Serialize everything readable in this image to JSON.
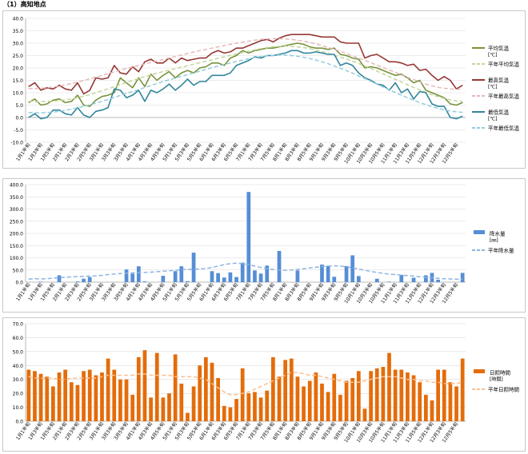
{
  "page": {
    "title": "（1）高知地点"
  },
  "chart_data": [
    {
      "type": "line",
      "categories": [
        "1月1半旬",
        "1月2半旬",
        "1月3半旬",
        "1月4半旬",
        "1月5半旬",
        "1月6半旬",
        "2月1半旬",
        "2月2半旬",
        "2月3半旬",
        "2月4半旬",
        "2月5半旬",
        "2月6半旬",
        "3月1半旬",
        "3月2半旬",
        "3月3半旬",
        "3月4半旬",
        "3月5半旬",
        "3月6半旬",
        "4月1半旬",
        "4月2半旬",
        "4月3半旬",
        "4月4半旬",
        "4月5半旬",
        "4月6半旬",
        "5月1半旬",
        "5月2半旬",
        "5月3半旬",
        "5月4半旬",
        "5月5半旬",
        "5月6半旬",
        "6月1半旬",
        "6月2半旬",
        "6月3半旬",
        "6月4半旬",
        "6月5半旬",
        "6月6半旬",
        "7月1半旬",
        "7月2半旬",
        "7月3半旬",
        "7月4半旬",
        "7月5半旬",
        "7月6半旬",
        "8月1半旬",
        "8月2半旬",
        "8月3半旬",
        "8月4半旬",
        "8月5半旬",
        "8月6半旬",
        "9月1半旬",
        "9月2半旬",
        "9月3半旬",
        "9月4半旬",
        "9月5半旬",
        "9月6半旬",
        "10月1半旬",
        "10月2半旬",
        "10月3半旬",
        "10月4半旬",
        "10月5半旬",
        "10月6半旬",
        "11月1半旬",
        "11月2半旬",
        "11月3半旬",
        "11月4半旬",
        "11月5半旬",
        "11月6半旬",
        "12月1半旬",
        "12月2半旬",
        "12月3半旬",
        "12月4半旬",
        "12月5半旬",
        "12月6半旬"
      ],
      "xlabels": [
        "1月1半旬",
        "1月3半旬",
        "1月5半旬",
        "2月1半旬",
        "2月3半旬",
        "2月5半旬",
        "3月1半旬",
        "3月3半旬",
        "3月5半旬",
        "4月1半旬",
        "4月3半旬",
        "4月5半旬",
        "5月1半旬",
        "5月3半旬",
        "5月5半旬",
        "6月1半旬",
        "6月3半旬",
        "6月5半旬",
        "7月1半旬",
        "7月3半旬",
        "7月5半旬",
        "8月1半旬",
        "8月3半旬",
        "8月5半旬",
        "9月1半旬",
        "9月3半旬",
        "9月5半旬",
        "10月1半旬",
        "10月3半旬",
        "10月5半旬",
        "11月1半旬",
        "11月3半旬",
        "11月5半旬",
        "12月1半旬",
        "12月3半旬",
        "12月5半旬"
      ],
      "ylim": [
        -10,
        40
      ],
      "yticks": [
        "-10.0",
        "-5.0",
        "0.0",
        "5.0",
        "10.0",
        "15.0",
        "20.0",
        "25.0",
        "30.0",
        "35.0",
        "40.0"
      ],
      "grid": true,
      "legend_position": "right",
      "series": [
        {
          "name": "平均気温",
          "unit": "[℃]",
          "color": "#77933c",
          "style": "solid",
          "values": [
            6,
            7.5,
            5,
            5.5,
            7,
            7.5,
            6,
            6.5,
            9,
            5,
            4.5,
            7,
            8.5,
            9,
            10,
            16,
            14,
            12,
            16,
            12.5,
            17.5,
            15,
            17,
            18.5,
            16,
            18,
            19,
            18,
            20,
            20.5,
            22,
            22,
            21,
            24,
            25,
            27,
            26,
            27,
            27.5,
            28,
            28,
            28.5,
            29,
            29.5,
            30,
            29.5,
            28.5,
            28,
            28,
            27.5,
            28,
            25.5,
            25,
            24,
            23.5,
            20,
            20.5,
            20,
            19,
            18,
            17,
            17.5,
            16,
            14,
            15,
            11,
            10,
            9,
            8,
            5.5,
            5,
            6
          ]
        },
        {
          "name": "平年平均気温",
          "color": "#c3d69b",
          "style": "dashed",
          "values": [
            6.5,
            6.4,
            6.4,
            6.5,
            6.6,
            6.8,
            7.1,
            7.5,
            8,
            8.6,
            9.2,
            10,
            10.8,
            11.6,
            12.4,
            13.3,
            14.1,
            14.9,
            15.7,
            16.5,
            17.2,
            17.9,
            18.5,
            19.1,
            19.7,
            20.3,
            20.9,
            21.5,
            22.1,
            22.7,
            23.3,
            23.9,
            24.5,
            25.1,
            25.6,
            26.2,
            26.8,
            27.3,
            27.8,
            28.2,
            28.5,
            28.7,
            28.8,
            28.7,
            28.5,
            28.2,
            27.8,
            27.2,
            26.6,
            25.9,
            25.2,
            24.4,
            23.6,
            22.7,
            21.8,
            20.8,
            19.8,
            18.7,
            17.6,
            16.5,
            15.4,
            14.3,
            13.2,
            12.1,
            11.1,
            10.1,
            9.2,
            8.4,
            7.7,
            7.1,
            6.7,
            6.5
          ]
        },
        {
          "name": "最高気温",
          "unit": "[℃]",
          "color": "#953735",
          "style": "solid",
          "values": [
            12.5,
            14,
            11,
            12,
            11.5,
            13,
            11.5,
            11,
            14,
            9.5,
            11,
            16,
            15.5,
            16,
            21,
            18,
            17.5,
            20.5,
            18.5,
            22.5,
            23.5,
            22,
            22,
            24,
            22,
            24,
            23,
            23.5,
            24,
            24,
            26,
            27,
            26,
            26.5,
            28,
            28,
            29,
            30,
            31,
            31.5,
            30.5,
            32,
            33,
            33.5,
            33.5,
            33.5,
            33.5,
            33,
            32.5,
            32.5,
            32.5,
            30.5,
            30,
            30,
            30,
            24,
            25,
            25.5,
            24,
            22.5,
            22.5,
            22,
            21,
            21.5,
            19,
            19.5,
            17,
            15,
            16.5,
            15,
            11.5,
            13
          ]
        },
        {
          "name": "平年最高気温",
          "color": "#e6b9b8",
          "style": "dashed",
          "values": [
            11.7,
            11.7,
            11.8,
            12,
            12.3,
            12.7,
            13.2,
            13.7,
            14.3,
            14.9,
            15.6,
            16.3,
            17,
            17.7,
            18.4,
            19.1,
            19.8,
            20.4,
            21,
            21.6,
            22.2,
            22.8,
            23.4,
            24,
            24.6,
            25.2,
            25.8,
            26.4,
            27,
            27.5,
            28,
            28.5,
            29,
            29.5,
            30,
            30.4,
            30.8,
            31.2,
            31.5,
            31.7,
            31.8,
            31.8,
            31.7,
            31.5,
            31.2,
            30.8,
            30.3,
            29.7,
            29,
            28.3,
            27.5,
            26.7,
            25.8,
            24.9,
            24,
            23.1,
            22.1,
            21.1,
            20.1,
            19.2,
            18.2,
            17.2,
            16.2,
            15.3,
            14.4,
            13.5,
            12.8,
            12.2,
            11.8,
            11.5,
            11.4,
            11.4
          ]
        },
        {
          "name": "最低気温",
          "unit": "[℃]",
          "color": "#31859c",
          "style": "solid",
          "values": [
            0,
            1.5,
            -0.5,
            0,
            3,
            3,
            1.5,
            1,
            4,
            1,
            0,
            2.5,
            3,
            4,
            11.5,
            11,
            8,
            9,
            11,
            6.5,
            11,
            10,
            11.5,
            13.5,
            11,
            13,
            15.5,
            13,
            14.5,
            14.5,
            17,
            17,
            17,
            18,
            21,
            22,
            23,
            24.5,
            24,
            25,
            25,
            25.5,
            26,
            27,
            27,
            26,
            26,
            26.5,
            26,
            25.5,
            25.5,
            21,
            22,
            21,
            18,
            16,
            15,
            13.5,
            13,
            11,
            14,
            10,
            11.5,
            7.5,
            10.5,
            10,
            5.5,
            4.5,
            4.5,
            0,
            -0.5,
            0.5
          ]
        },
        {
          "name": "平年最低気温",
          "color": "#93cddd",
          "style": "dashed",
          "values": [
            2,
            1.9,
            1.9,
            2,
            2.2,
            2.5,
            2.9,
            3.4,
            3.9,
            4.5,
            5.1,
            5.8,
            6.5,
            7.3,
            8.1,
            8.9,
            9.7,
            10.5,
            11.3,
            12.1,
            12.9,
            13.7,
            14.5,
            15.2,
            15.9,
            16.6,
            17.3,
            18,
            18.7,
            19.4,
            20.1,
            20.8,
            21.4,
            22,
            22.6,
            23.2,
            23.7,
            24.2,
            24.6,
            24.9,
            25.1,
            25.2,
            25.2,
            25,
            24.7,
            24.3,
            23.8,
            23.2,
            22.5,
            21.7,
            20.8,
            19.9,
            18.9,
            17.9,
            16.8,
            15.7,
            14.6,
            13.5,
            12.3,
            11.2,
            10.1,
            9,
            8,
            7,
            6,
            5.2,
            4.4,
            3.7,
            3.1,
            2.6,
            2.3,
            2.1
          ]
        }
      ]
    },
    {
      "type": "bar",
      "ylim": [
        0,
        400
      ],
      "yticks": [
        "0.0",
        "50.0",
        "100.0",
        "150.0",
        "200.0",
        "250.0",
        "300.0",
        "350.0",
        "400.0"
      ],
      "grid": true,
      "legend_position": "right",
      "bar_series": {
        "name": "降水量",
        "unit": "[㎜]",
        "color": "#558ed5",
        "values": [
          0,
          0,
          2,
          0,
          0,
          28,
          0,
          0,
          3,
          14,
          21,
          0,
          0,
          0,
          0,
          0,
          52,
          35,
          65,
          3,
          0,
          0,
          26,
          0,
          45,
          65,
          4,
          121,
          0,
          0,
          45,
          37,
          19,
          40,
          21,
          80,
          370,
          48,
          35,
          68,
          0,
          128,
          0,
          0,
          48,
          0,
          0,
          0,
          72,
          67,
          22,
          0,
          66,
          110,
          25,
          0,
          0,
          14,
          0,
          2,
          0,
          30,
          0,
          18,
          0,
          28,
          38,
          10,
          0,
          0,
          0,
          38
        ]
      },
      "line_series": {
        "name": "平年降水量",
        "color": "#8db3e2",
        "style": "dashed",
        "values": [
          12,
          14,
          13,
          14,
          16,
          18,
          20,
          22,
          23,
          24,
          25,
          26,
          28,
          31,
          33,
          35,
          37,
          38,
          39,
          40,
          41,
          43,
          45,
          47,
          49,
          51,
          52,
          53,
          54,
          56,
          60,
          66,
          72,
          76,
          78,
          76,
          72,
          66,
          60,
          55,
          52,
          50,
          49,
          50,
          52,
          55,
          58,
          61,
          64,
          66,
          67,
          66,
          63,
          59,
          54,
          49,
          44,
          40,
          36,
          33,
          31,
          29,
          27,
          25,
          22,
          20,
          18,
          16,
          14,
          13,
          12,
          12
        ]
      }
    },
    {
      "type": "bar",
      "ylim": [
        0,
        70
      ],
      "yticks": [
        "0.0",
        "10.0",
        "20.0",
        "30.0",
        "40.0",
        "50.0",
        "60.0",
        "70.0"
      ],
      "grid": true,
      "legend_position": "right",
      "bar_series": {
        "name": "日照時間",
        "unit": "[時間]",
        "color": "#e46c0a",
        "values": [
          37,
          36,
          34,
          32,
          25,
          35,
          37,
          28,
          26,
          36,
          37,
          33,
          35,
          45,
          37,
          30,
          30,
          19,
          46,
          51,
          17,
          49,
          17,
          20,
          48,
          27,
          6,
          25,
          40,
          46,
          42,
          31,
          11,
          10,
          16,
          38,
          20,
          21,
          17,
          22,
          46,
          32,
          44,
          45,
          32,
          25,
          29,
          35,
          27,
          21,
          34,
          19,
          29,
          31,
          36,
          9,
          36,
          38,
          39,
          49,
          37,
          37,
          35,
          33,
          28,
          19,
          15,
          37,
          37,
          28,
          25,
          45
        ]
      },
      "line_series": {
        "name": "平年日照時間",
        "color": "#fac090",
        "style": "dashed",
        "values": [
          32,
          31,
          31,
          31,
          31,
          30,
          30,
          31,
          31,
          31,
          31,
          31,
          32,
          33,
          33,
          33,
          33,
          33,
          34,
          34,
          33,
          33,
          33,
          33,
          32,
          32,
          32,
          32,
          31,
          30,
          27,
          24,
          21,
          19,
          19,
          20,
          21,
          23,
          25,
          27,
          29,
          31,
          33,
          35,
          35,
          34,
          33,
          33,
          32,
          31,
          30,
          29,
          28,
          28,
          28,
          29,
          30,
          31,
          32,
          32,
          32,
          31,
          30,
          30,
          29,
          29,
          28,
          28,
          27,
          27,
          27,
          28
        ]
      }
    }
  ]
}
